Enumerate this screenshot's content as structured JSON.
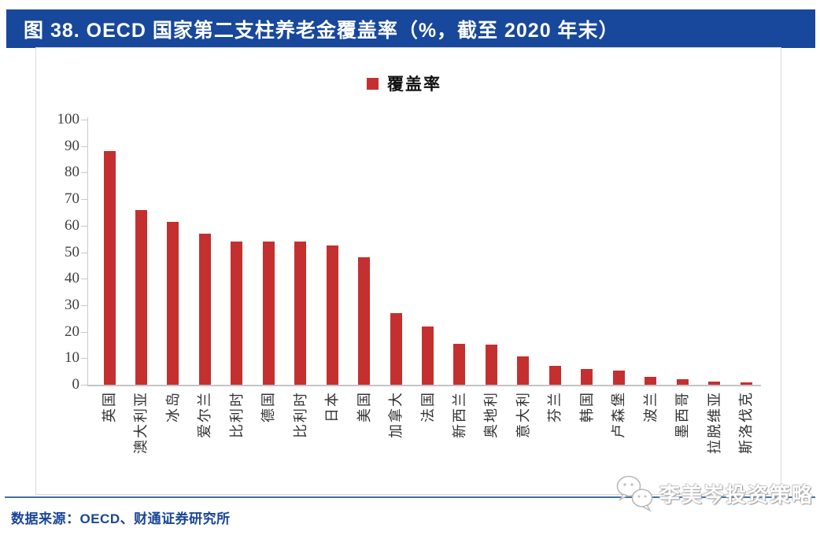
{
  "header": {
    "title": "图 38. OECD 国家第二支柱养老金覆盖率（%，截至 2020 年末）"
  },
  "legend": {
    "label": "覆盖率",
    "color": "#C4302F"
  },
  "chart_data": {
    "type": "bar",
    "title": "图 38. OECD 国家第二支柱养老金覆盖率（%，截至 2020 年末）",
    "legend": [
      "覆盖率"
    ],
    "legend_position": "top-center",
    "categories": [
      "英国",
      "澳大利亚",
      "冰岛",
      "爱尔兰",
      "比利时",
      "德国",
      "比利时",
      "日本",
      "美国",
      "加拿大",
      "法国",
      "新西兰",
      "奥地利",
      "意大利",
      "芬兰",
      "韩国",
      "卢森堡",
      "波兰",
      "墨西哥",
      "拉脱维亚",
      "斯洛伐克"
    ],
    "values": [
      88,
      66,
      61.5,
      57,
      54,
      54,
      54,
      52.5,
      48,
      27,
      22,
      15.3,
      15,
      10.7,
      7,
      6,
      5.2,
      3,
      2.2,
      1.3,
      0.9
    ],
    "xlabel": "",
    "ylabel": "",
    "ylim": [
      0,
      100
    ],
    "yticks": [
      0,
      10,
      20,
      30,
      40,
      50,
      60,
      70,
      80,
      90,
      100
    ],
    "grid": false,
    "bar_color": "#C4302F",
    "x_label_rotation": -90
  },
  "footer": {
    "source": "数据来源：OECD、财通证券研究所",
    "watermark": "李美岑投资策略",
    "watermark_icon": "wechat-icon"
  },
  "colors": {
    "title_bar": "#17489B",
    "bar": "#C4302F",
    "footer_text": "#1A4697",
    "separator_line": "#40719F",
    "chart_border": "#D9D9D9",
    "axis": "#C9C9C9",
    "tick_text": "#404040"
  }
}
